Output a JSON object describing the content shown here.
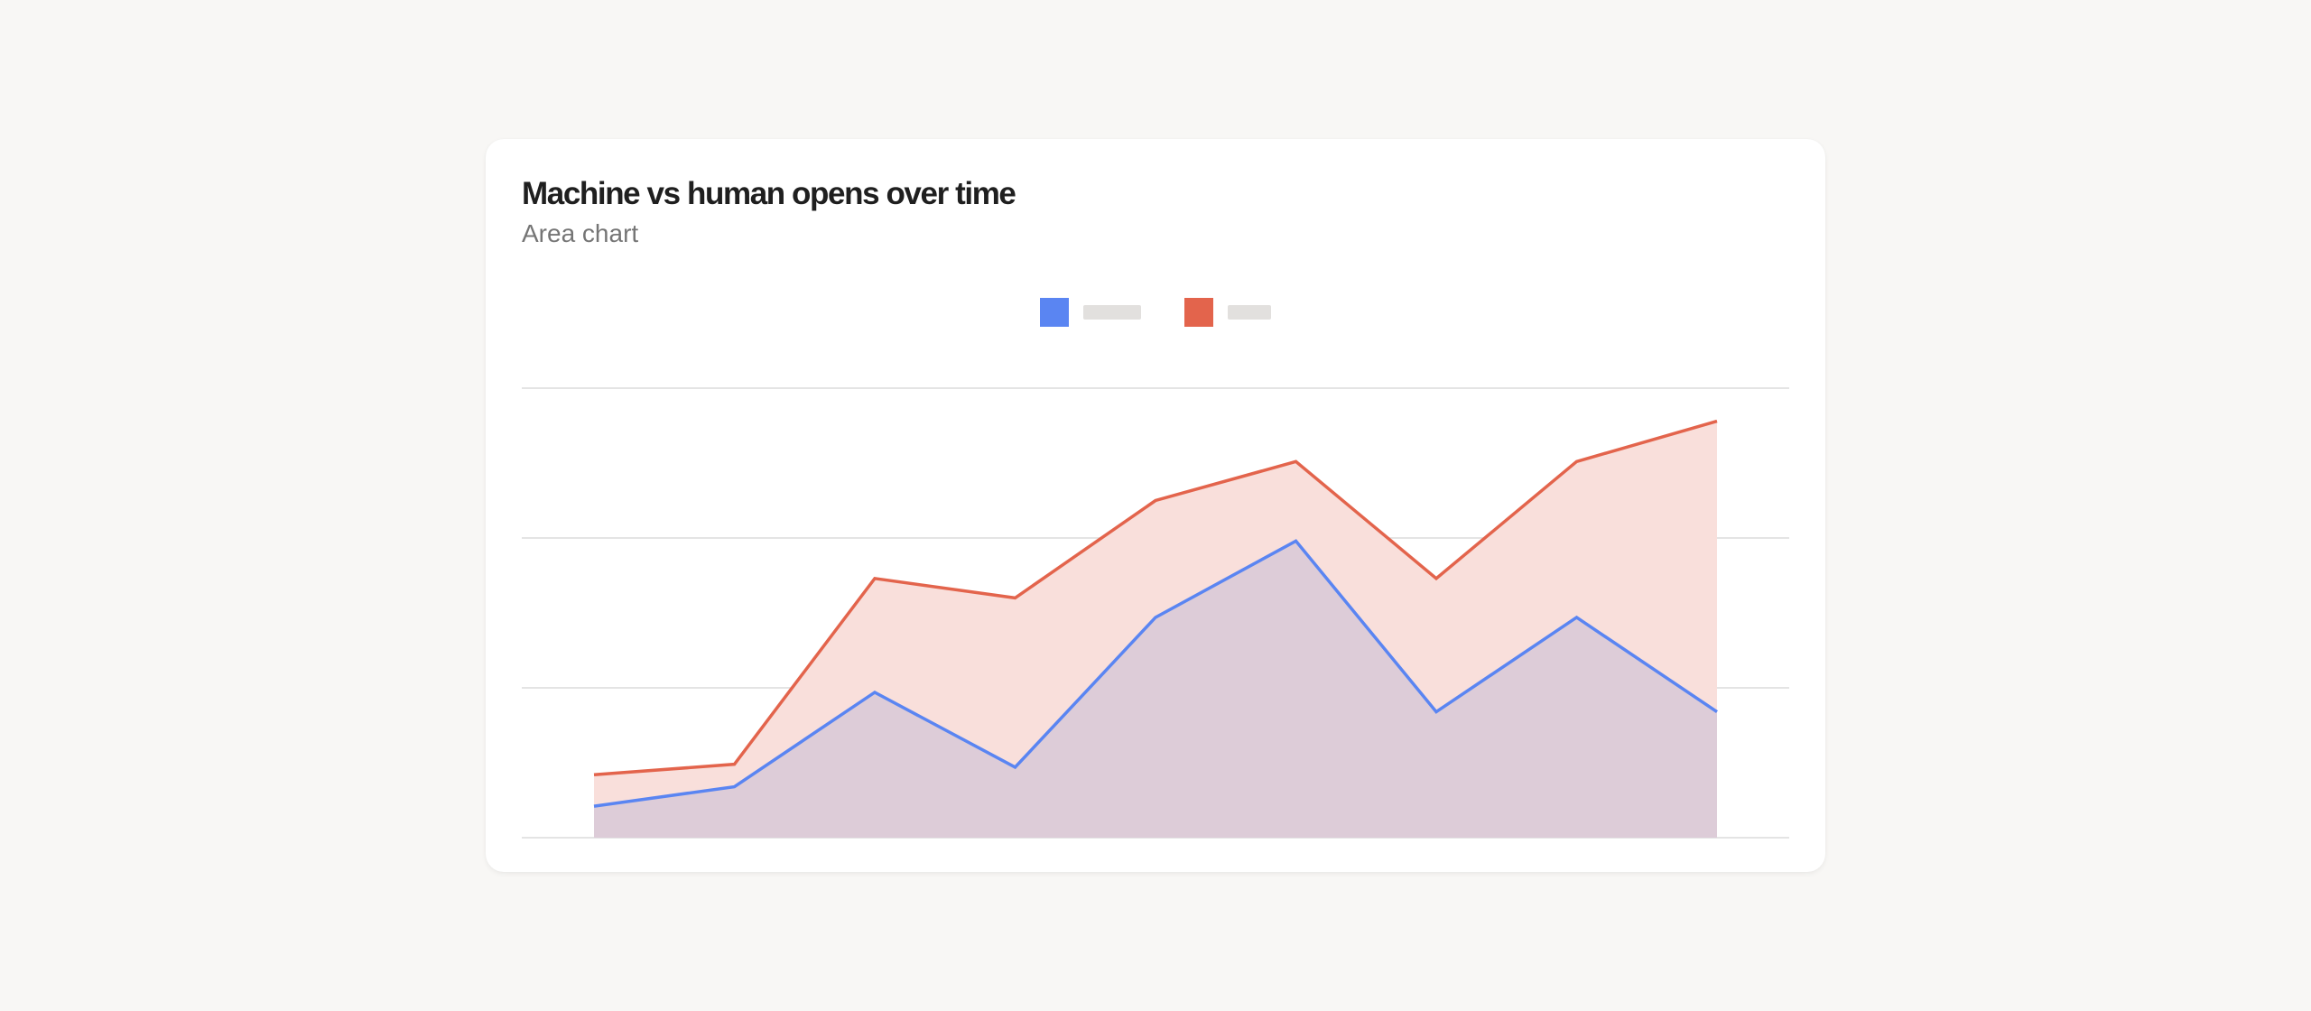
{
  "card": {
    "title": "Machine vs human opens over time",
    "subtitle": "Area chart"
  },
  "chart_data": {
    "type": "area",
    "title": "Machine vs human opens over time",
    "subtitle": "Area chart",
    "xlabel": "",
    "ylabel": "",
    "x": [
      1,
      2,
      3,
      4,
      5,
      6,
      7,
      8,
      9
    ],
    "ylim": [
      0,
      300
    ],
    "gridlines": [
      0,
      100,
      200,
      300
    ],
    "grid": true,
    "legend": "top-center",
    "stacked": false,
    "series": [
      {
        "name": "",
        "color": "#5a85f2",
        "fill": "#ddccd8",
        "values": [
          21,
          34,
          97,
          47,
          147,
          198,
          84,
          147,
          84
        ]
      },
      {
        "name": "",
        "color": "#e3644c",
        "fill": "#f9dfdb",
        "values": [
          42,
          49,
          173,
          160,
          225,
          251,
          173,
          251,
          278
        ]
      }
    ]
  }
}
